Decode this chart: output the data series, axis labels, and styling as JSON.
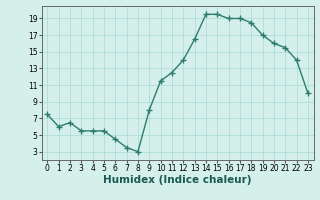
{
  "x": [
    0,
    1,
    2,
    3,
    4,
    5,
    6,
    7,
    8,
    9,
    10,
    11,
    12,
    13,
    14,
    15,
    16,
    17,
    18,
    19,
    20,
    21,
    22,
    23
  ],
  "y": [
    7.5,
    6.0,
    6.5,
    5.5,
    5.5,
    5.5,
    4.5,
    3.5,
    3.0,
    8.0,
    11.5,
    12.5,
    14.0,
    16.5,
    19.5,
    19.5,
    19.0,
    19.0,
    18.5,
    17.0,
    16.0,
    15.5,
    14.0,
    10.0
  ],
  "line_color": "#2d7d6e",
  "marker": "+",
  "markersize": 4,
  "markeredgewidth": 1.0,
  "linewidth": 1.0,
  "bg_color": "#d5f0eb",
  "grid_color": "#b0ddd8",
  "xlabel": "Humidex (Indice chaleur)",
  "xlim": [
    -0.5,
    23.5
  ],
  "ylim": [
    2,
    20.5
  ],
  "xticks": [
    0,
    1,
    2,
    3,
    4,
    5,
    6,
    7,
    8,
    9,
    10,
    11,
    12,
    13,
    14,
    15,
    16,
    17,
    18,
    19,
    20,
    21,
    22,
    23
  ],
  "yticks": [
    3,
    5,
    7,
    9,
    11,
    13,
    15,
    17,
    19
  ],
  "tick_fontsize": 5.5,
  "xlabel_fontsize": 7.5
}
